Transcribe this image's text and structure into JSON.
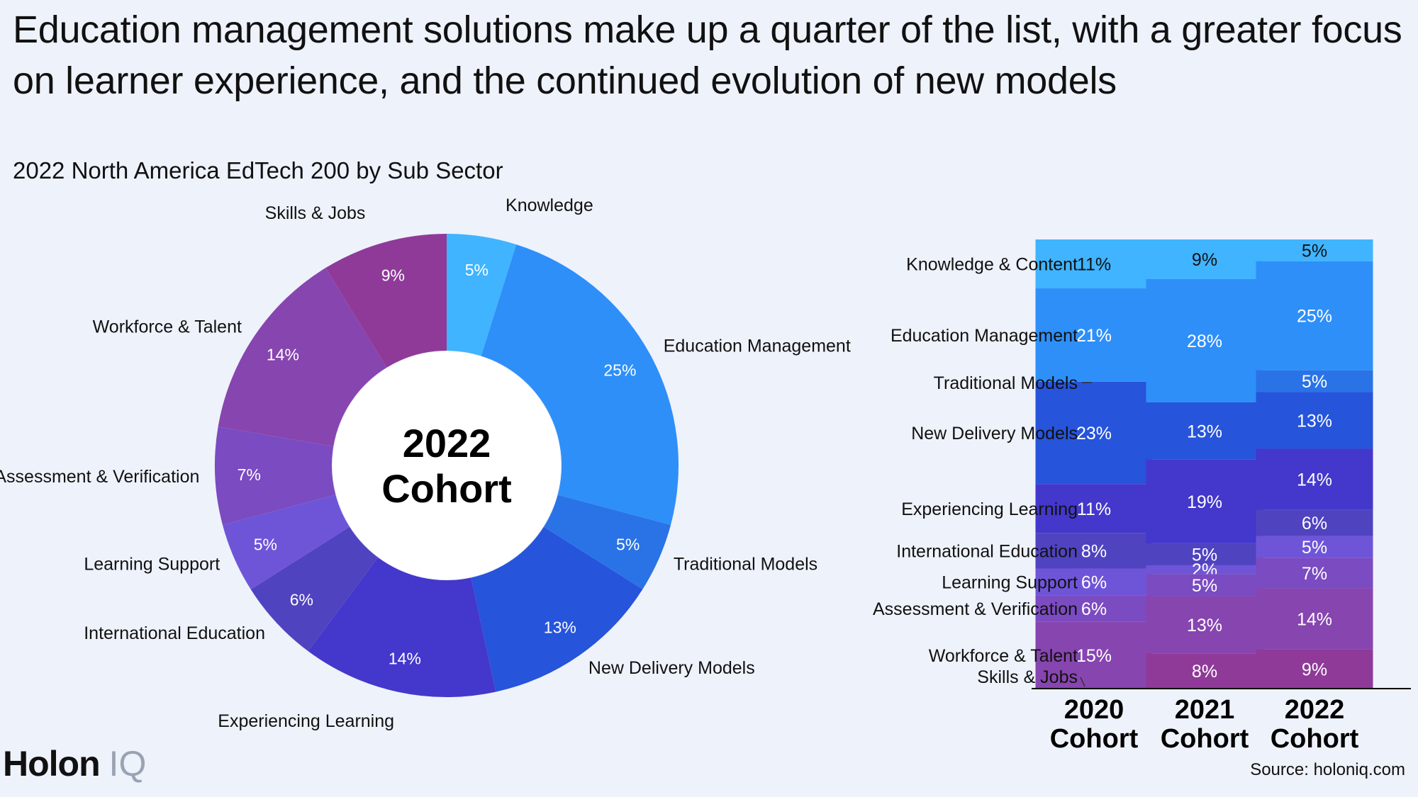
{
  "headline": "Education management solutions make up a quarter of the list, with a greater focus on learner experience, and the continued evolution of new models",
  "subtitle": "2022 North America EdTech 200 by Sub Sector",
  "brand": {
    "name": "Holon",
    "suffix": "IQ"
  },
  "source": "Source: holoniq.com",
  "colors": {
    "knowledge": "#40b4fe",
    "education_management": "#2e8ff9",
    "traditional_models": "#2a73e6",
    "new_delivery_models": "#2654db",
    "experiencing_learning": "#4437cc",
    "international_education": "#5043c0",
    "learning_support": "#6e55d8",
    "assessment": "#7b4bc1",
    "workforce": "#8745b0",
    "skills": "#8f3a98"
  },
  "chart_data": [
    {
      "type": "pie",
      "variant": "donut",
      "center_label": "2022 Cohort",
      "slices": [
        {
          "label": "Knowledge",
          "value": 5,
          "value_label": "5%"
        },
        {
          "label": "Education Management",
          "value": 25,
          "value_label": "25%"
        },
        {
          "label": "Traditional Models",
          "value": 5,
          "value_label": "5%"
        },
        {
          "label": "New Delivery Models",
          "value": 13,
          "value_label": "13%"
        },
        {
          "label": "Experiencing Learning",
          "value": 14,
          "value_label": "14%"
        },
        {
          "label": "International Education",
          "value": 6,
          "value_label": "6%"
        },
        {
          "label": "Learning Support",
          "value": 5,
          "value_label": "5%"
        },
        {
          "label": "Assessment & Verification",
          "value": 7,
          "value_label": "7%"
        },
        {
          "label": "Workforce & Talent",
          "value": 14,
          "value_label": "14%"
        },
        {
          "label": "Skills & Jobs",
          "value": 9,
          "value_label": "9%"
        }
      ]
    },
    {
      "type": "bar",
      "stacked": true,
      "normalized": true,
      "categories": [
        "2020 Cohort",
        "2021 Cohort",
        "2022 Cohort"
      ],
      "series": [
        {
          "name": "Knowledge & Content",
          "values": [
            11,
            9,
            5
          ]
        },
        {
          "name": "Education Management",
          "values": [
            21,
            28,
            25
          ]
        },
        {
          "name": "Traditional Models",
          "values": [
            0,
            0,
            5
          ]
        },
        {
          "name": "New Delivery Models",
          "values": [
            23,
            13,
            13
          ]
        },
        {
          "name": "Experiencing Learning",
          "values": [
            11,
            19,
            14
          ]
        },
        {
          "name": "International Education",
          "values": [
            8,
            5,
            6
          ]
        },
        {
          "name": "Learning Support",
          "values": [
            6,
            2,
            5
          ]
        },
        {
          "name": "Assessment & Verification",
          "values": [
            6,
            5,
            7
          ]
        },
        {
          "name": "Workforce & Talent",
          "values": [
            15,
            13,
            14
          ]
        },
        {
          "name": "Skills & Jobs",
          "values": [
            0,
            8,
            9
          ]
        }
      ]
    }
  ]
}
